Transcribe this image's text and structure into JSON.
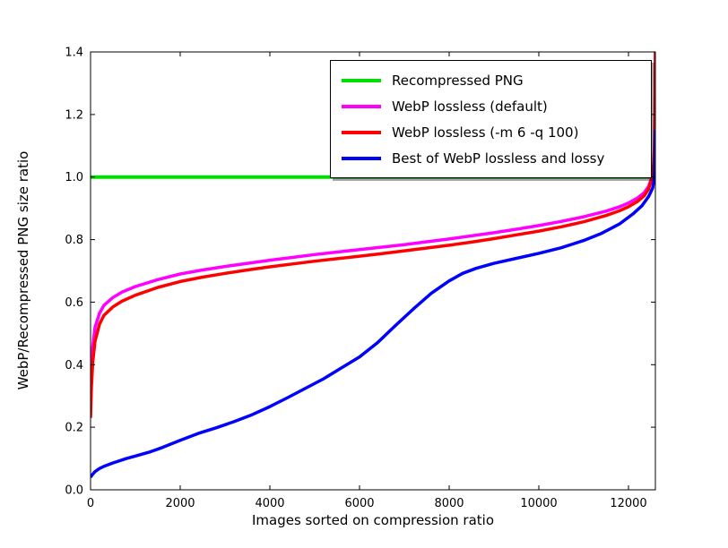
{
  "figure": {
    "background": "#ffffff"
  },
  "chart_data": {
    "type": "line",
    "title": "",
    "xlabel": "Images sorted on compression ratio",
    "ylabel": "WebP/Recompressed PNG size ratio",
    "xlim": [
      0,
      12600
    ],
    "ylim": [
      0.0,
      1.4
    ],
    "grid": false,
    "legend_position": "upper center-right",
    "xtick_values": [
      0,
      2000,
      4000,
      6000,
      8000,
      10000,
      12000
    ],
    "xtick_labels": [
      "0",
      "2000",
      "4000",
      "6000",
      "8000",
      "10000",
      "12000"
    ],
    "ytick_values": [
      0.0,
      0.2,
      0.4,
      0.6,
      0.8,
      1.0,
      1.2,
      1.4
    ],
    "ytick_labels": [
      "0.0",
      "0.2",
      "0.4",
      "0.6",
      "0.8",
      "1.0",
      "1.2",
      "1.4"
    ],
    "series": [
      {
        "id": "recompressed-png",
        "name": "Recompressed PNG",
        "color": "#00e000",
        "width": 4,
        "points": [
          [
            0,
            1.0
          ],
          [
            12600,
            1.0
          ]
        ]
      },
      {
        "id": "webp-lossless-default",
        "name": "WebP lossless (default)",
        "color": "#ff00ff",
        "width": 3.5,
        "points": [
          [
            0,
            0.3
          ],
          [
            20,
            0.38
          ],
          [
            50,
            0.46
          ],
          [
            100,
            0.52
          ],
          [
            200,
            0.565
          ],
          [
            300,
            0.59
          ],
          [
            500,
            0.615
          ],
          [
            700,
            0.632
          ],
          [
            1000,
            0.65
          ],
          [
            1500,
            0.672
          ],
          [
            2000,
            0.69
          ],
          [
            2500,
            0.703
          ],
          [
            3000,
            0.714
          ],
          [
            3500,
            0.724
          ],
          [
            4000,
            0.734
          ],
          [
            4500,
            0.743
          ],
          [
            5000,
            0.752
          ],
          [
            5500,
            0.76
          ],
          [
            6000,
            0.768
          ],
          [
            6500,
            0.776
          ],
          [
            7000,
            0.784
          ],
          [
            7500,
            0.793
          ],
          [
            8000,
            0.802
          ],
          [
            8500,
            0.812
          ],
          [
            9000,
            0.822
          ],
          [
            9500,
            0.833
          ],
          [
            10000,
            0.845
          ],
          [
            10500,
            0.858
          ],
          [
            11000,
            0.873
          ],
          [
            11500,
            0.891
          ],
          [
            11800,
            0.905
          ],
          [
            12000,
            0.917
          ],
          [
            12200,
            0.933
          ],
          [
            12350,
            0.95
          ],
          [
            12450,
            0.97
          ],
          [
            12520,
            1.0
          ],
          [
            12560,
            1.04
          ],
          [
            12580,
            1.1
          ],
          [
            12592,
            1.2
          ],
          [
            12600,
            1.4
          ]
        ]
      },
      {
        "id": "webp-lossless-m6-q100",
        "name": "WebP lossless (-m 6 -q 100)",
        "color": "#ff0000",
        "width": 3.5,
        "points": [
          [
            0,
            0.23
          ],
          [
            20,
            0.33
          ],
          [
            50,
            0.41
          ],
          [
            100,
            0.475
          ],
          [
            200,
            0.53
          ],
          [
            300,
            0.558
          ],
          [
            500,
            0.585
          ],
          [
            700,
            0.603
          ],
          [
            1000,
            0.622
          ],
          [
            1500,
            0.647
          ],
          [
            2000,
            0.666
          ],
          [
            2500,
            0.68
          ],
          [
            3000,
            0.692
          ],
          [
            3500,
            0.703
          ],
          [
            4000,
            0.713
          ],
          [
            4500,
            0.722
          ],
          [
            5000,
            0.731
          ],
          [
            5500,
            0.739
          ],
          [
            6000,
            0.747
          ],
          [
            6500,
            0.755
          ],
          [
            7000,
            0.764
          ],
          [
            7500,
            0.773
          ],
          [
            8000,
            0.782
          ],
          [
            8500,
            0.792
          ],
          [
            9000,
            0.803
          ],
          [
            9500,
            0.815
          ],
          [
            10000,
            0.827
          ],
          [
            10500,
            0.841
          ],
          [
            11000,
            0.857
          ],
          [
            11500,
            0.877
          ],
          [
            11800,
            0.892
          ],
          [
            12000,
            0.905
          ],
          [
            12200,
            0.922
          ],
          [
            12350,
            0.94
          ],
          [
            12450,
            0.962
          ],
          [
            12520,
            0.995
          ],
          [
            12560,
            1.035
          ],
          [
            12580,
            1.09
          ],
          [
            12592,
            1.19
          ],
          [
            12600,
            1.4
          ]
        ]
      },
      {
        "id": "best-of-webp-lossless-and-lossy",
        "name": "Best of WebP lossless and lossy",
        "color": "#0000ff",
        "width": 3.5,
        "points": [
          [
            0,
            0.04
          ],
          [
            50,
            0.05
          ],
          [
            100,
            0.058
          ],
          [
            200,
            0.068
          ],
          [
            300,
            0.075
          ],
          [
            500,
            0.086
          ],
          [
            800,
            0.1
          ],
          [
            1000,
            0.108
          ],
          [
            1300,
            0.12
          ],
          [
            1600,
            0.135
          ],
          [
            2000,
            0.158
          ],
          [
            2400,
            0.18
          ],
          [
            2800,
            0.198
          ],
          [
            3200,
            0.218
          ],
          [
            3600,
            0.24
          ],
          [
            4000,
            0.266
          ],
          [
            4400,
            0.295
          ],
          [
            4800,
            0.325
          ],
          [
            5200,
            0.355
          ],
          [
            5600,
            0.39
          ],
          [
            6000,
            0.425
          ],
          [
            6400,
            0.47
          ],
          [
            6800,
            0.525
          ],
          [
            7200,
            0.578
          ],
          [
            7600,
            0.628
          ],
          [
            8000,
            0.668
          ],
          [
            8300,
            0.692
          ],
          [
            8600,
            0.708
          ],
          [
            9000,
            0.724
          ],
          [
            9500,
            0.74
          ],
          [
            10000,
            0.756
          ],
          [
            10500,
            0.774
          ],
          [
            11000,
            0.797
          ],
          [
            11400,
            0.82
          ],
          [
            11800,
            0.85
          ],
          [
            12100,
            0.882
          ],
          [
            12300,
            0.908
          ],
          [
            12450,
            0.938
          ],
          [
            12540,
            0.965
          ],
          [
            12580,
            1.0
          ],
          [
            12595,
            1.08
          ],
          [
            12600,
            1.15
          ]
        ]
      }
    ]
  }
}
